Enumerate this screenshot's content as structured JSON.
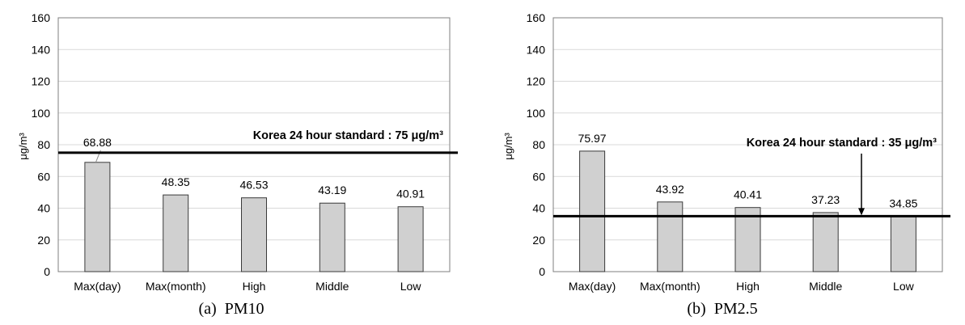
{
  "colors": {
    "bar_fill": "#d0d0d0",
    "bar_stroke": "#3a3a3a",
    "grid": "#d9d9d9",
    "frame": "#7f7f7f",
    "standard_line": "#000000"
  },
  "captions": {
    "a": "(a)  PM10",
    "b": "(b)  PM2.5"
  },
  "chart_data": [
    {
      "type": "bar",
      "categories": [
        "Max(day)",
        "Max(month)",
        "High",
        "Middle",
        "Low"
      ],
      "values": [
        68.88,
        48.35,
        46.53,
        43.19,
        40.91
      ],
      "value_labels": [
        "68.88",
        "48.35",
        "46.53",
        "43.19",
        "40.91"
      ],
      "ylabel": "μg/m³",
      "ylim": [
        0,
        160
      ],
      "yticks": [
        0,
        20,
        40,
        60,
        80,
        100,
        120,
        140,
        160
      ],
      "grid": true,
      "reference_line": {
        "value": 75,
        "label": "Korea 24 hour standard : 75 μg/m³",
        "arrow": false
      }
    },
    {
      "type": "bar",
      "categories": [
        "Max(day)",
        "Max(month)",
        "High",
        "Middle",
        "Low"
      ],
      "values": [
        75.97,
        43.92,
        40.41,
        37.23,
        34.85
      ],
      "value_labels": [
        "75.97",
        "43.92",
        "40.41",
        "37.23",
        "34.85"
      ],
      "ylabel": "μg/m³",
      "ylim": [
        0,
        160
      ],
      "yticks": [
        0,
        20,
        40,
        60,
        80,
        100,
        120,
        140,
        160
      ],
      "grid": true,
      "reference_line": {
        "value": 35,
        "label": "Korea 24 hour standard : 35 μg/m³",
        "arrow": true
      }
    }
  ]
}
